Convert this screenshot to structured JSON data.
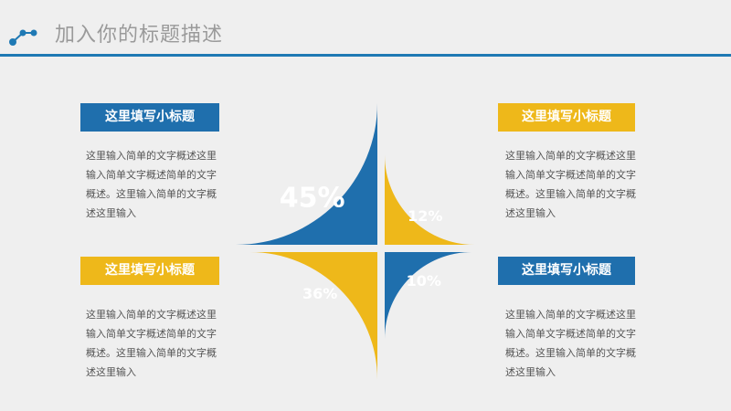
{
  "header": {
    "title": "加入你的标题描述"
  },
  "panels": [
    {
      "subtitle": "这里填写小标题",
      "text": "这里输入简单的文字概述这里输入简单文字概述简单的文字概述。这里输入简单的文字概述这里输入"
    },
    {
      "subtitle": "这里填写小标题",
      "text": "这里输入简单的文字概述这里输入简单文字概述简单的文字概述。这里输入简单的文字概述这里输入"
    },
    {
      "subtitle": "这里填写小标题",
      "text": "这里输入简单的文字概述这里输入简单文字概述简单的文字概述。这里输入简单的文字概述这里输入"
    },
    {
      "subtitle": "这里填写小标题",
      "text": "这里输入简单的文字概述这里输入简单文字概述简单的文字概述。这里输入简单的文字概述这里输入"
    }
  ],
  "colors": {
    "blue": "#1f6fad",
    "yellow": "#eeb81a",
    "accent_line": "#1f79b4"
  },
  "chart_data": {
    "type": "pie",
    "slices": [
      {
        "label": "45%",
        "value": 45,
        "quadrant": "top-left",
        "color": "#1f6fad"
      },
      {
        "label": "12%",
        "value": 12,
        "quadrant": "top-right",
        "color": "#eeb81a"
      },
      {
        "label": "10%",
        "value": 10,
        "quadrant": "bottom-right",
        "color": "#1f6fad"
      },
      {
        "label": "36%",
        "value": 36,
        "quadrant": "bottom-left",
        "color": "#eeb81a"
      }
    ]
  }
}
